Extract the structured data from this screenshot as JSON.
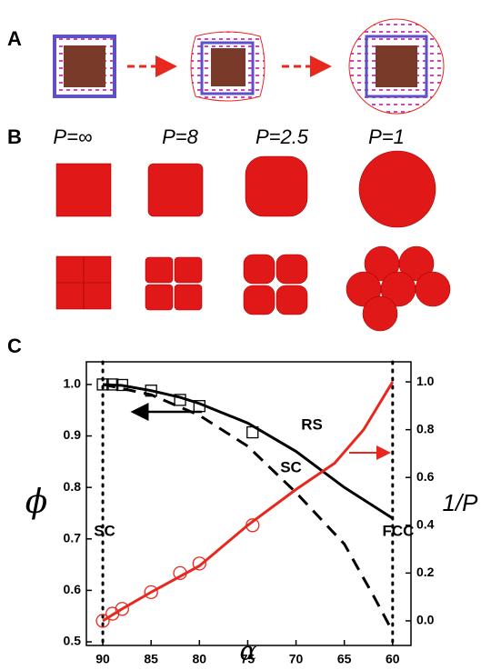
{
  "panels": {
    "a": "A",
    "b": "B",
    "c": "C"
  },
  "panel_b_labels": [
    "P=∞",
    "P=8",
    "P=2.5",
    "P=1"
  ],
  "chart_data": {
    "type": "line",
    "x_label": "α",
    "y_label": "ϕ",
    "y2_label": "1/P",
    "xlim": [
      91.7,
      58.1
    ],
    "xticks": [
      90,
      85,
      80,
      75,
      70,
      65,
      60
    ],
    "ylim": [
      0.493,
      1.044
    ],
    "yticks": [
      0.5,
      0.6,
      0.7,
      0.8,
      0.9,
      {
        "value": 1.0,
        "label": "1.0"
      }
    ],
    "y2lim": [
      -0.103,
      1.084
    ],
    "y2ticks": [
      {
        "value": 0,
        "label": "0.0"
      },
      0.2,
      0.4,
      0.6,
      0.8,
      {
        "value": 1.0,
        "label": "1.0"
      }
    ],
    "vlines": [
      90,
      60
    ],
    "annotations": [
      "RS",
      "SC",
      "SC",
      "FCC"
    ],
    "series": [
      {
        "color": "#000000",
        "style": "solid",
        "x": [
          90,
          88,
          85,
          82,
          80,
          75,
          70,
          65,
          60
        ],
        "values": [
          1.0,
          0.998,
          0.988,
          0.975,
          0.963,
          0.925,
          0.87,
          0.8,
          0.74
        ]
      },
      {
        "color": "#000000",
        "style": "dashed",
        "x": [
          90,
          85,
          80,
          75,
          70,
          65,
          62,
          60
        ],
        "values": [
          1.0,
          0.98,
          0.94,
          0.88,
          0.79,
          0.69,
          0.59,
          0.52
        ]
      },
      {
        "color": "#000000",
        "style": "none",
        "marker": "square",
        "x": [
          90,
          89,
          88,
          85,
          82,
          80,
          74.5
        ],
        "values": [
          1.0,
          1.0,
          0.999,
          0.988,
          0.97,
          0.958,
          0.907
        ]
      },
      {
        "color": "#e8281e",
        "style": "solid",
        "axis": "y2",
        "x": [
          90,
          88,
          85,
          80,
          75,
          70,
          66,
          63,
          60
        ],
        "values": [
          0.0,
          0.05,
          0.12,
          0.23,
          0.4,
          0.55,
          0.66,
          0.8,
          1.0
        ]
      },
      {
        "color": "#e8281e",
        "style": "none",
        "marker": "circle",
        "axis": "y2",
        "x": [
          90,
          89,
          88,
          85,
          82,
          80,
          74.5
        ],
        "values": [
          0.0,
          0.03,
          0.05,
          0.12,
          0.2,
          0.24,
          0.4
        ]
      }
    ]
  }
}
